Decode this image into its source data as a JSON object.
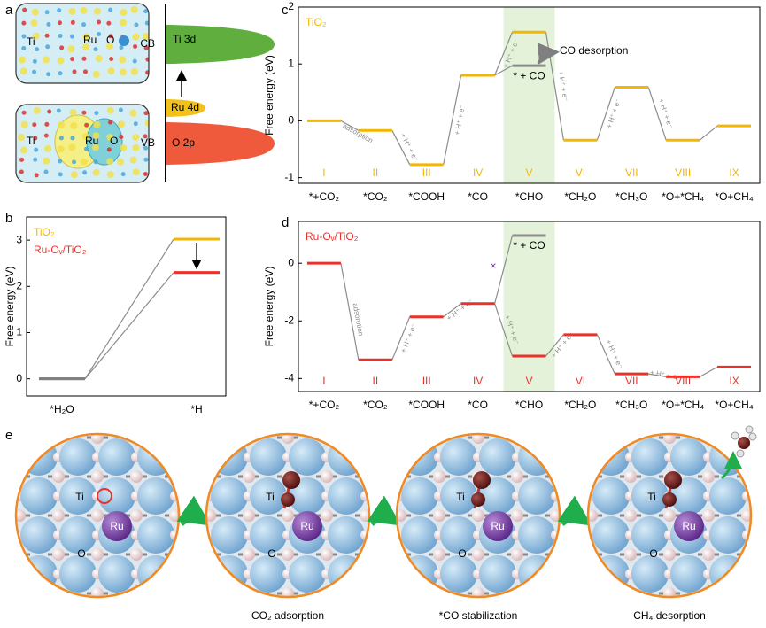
{
  "panel_labels": [
    "a",
    "b",
    "c",
    "d",
    "e"
  ],
  "panel_a": {
    "band_labels": [
      "CB",
      "VB"
    ],
    "levels": [
      "Ti 3d",
      "Ru 4d",
      "O 2p"
    ],
    "atoms": [
      "Ti",
      "Ru",
      "O",
      "Ti",
      "Ru",
      "O"
    ]
  },
  "chart_data": [
    {
      "type": "energy",
      "ylabel": "Free energy (eV)",
      "categories": [
        "*H₂O",
        "*H"
      ],
      "ylim": [
        -0.37,
        3.5
      ],
      "yticks": [
        0,
        1,
        2,
        3
      ],
      "series": [
        {
          "name": "TiO₂",
          "color": "#f2b705",
          "point_colors": [
            "#7f7f7f",
            "#f2b705"
          ],
          "values": [
            0,
            3.02
          ]
        },
        {
          "name": "Ru-Oᵥ/TiO₂",
          "color": "#e8322b",
          "point_colors": [
            "#7f7f7f",
            "#e8322b"
          ],
          "values": [
            0,
            2.3
          ]
        }
      ]
    },
    {
      "type": "energy",
      "ylabel": "Free energy (eV)",
      "categories": [
        "*+CO₂",
        "*CO₂",
        "*COOH",
        "*CO",
        "*CHO",
        "*CH₂O",
        "*CH₃O",
        "*O+*CH₄",
        "*O+CH₄"
      ],
      "stages": [
        "I",
        "II",
        "III",
        "IV",
        "V",
        "VI",
        "VII",
        "VIII",
        "IX"
      ],
      "ylim": [
        -1.1,
        2
      ],
      "yticks": [
        -1,
        0,
        1,
        2
      ],
      "highlight_category": "*CHO",
      "highlight_color": "#e3f2d9",
      "series": [
        {
          "name": "TiO₂",
          "color": "#f2b705",
          "values": [
            0,
            -0.17,
            -0.77,
            0.8,
            1.56,
            -0.34,
            0.59,
            -0.34,
            -0.09
          ]
        },
        {
          "name": "* + CO",
          "color": "#8c8c8c",
          "values": [
            null,
            null,
            null,
            null,
            0.97,
            null,
            null,
            null,
            null
          ]
        }
      ],
      "step_labels": [
        "adsorption",
        "+ H⁺ + e⁻",
        "+ H⁺ + e⁻",
        "+ H⁺ + e⁻",
        "+ H⁺ + e⁻",
        "+ H⁺ + e⁻",
        "+ H⁺ + e⁻",
        null
      ],
      "annotations": [
        "CO desorption"
      ]
    },
    {
      "type": "energy",
      "ylabel": "Free energy (eV)",
      "categories": [
        "*+CO₂",
        "*CO₂",
        "*COOH",
        "*CO",
        "*CHO",
        "*CH₂O",
        "*CH₃O",
        "*O+*CH₄",
        "*O+CH₄"
      ],
      "stages": [
        "I",
        "II",
        "III",
        "IV",
        "V",
        "VI",
        "VII",
        "VIII",
        "IX"
      ],
      "ylim": [
        -4.45,
        1.45
      ],
      "yticks": [
        -4,
        -2,
        0
      ],
      "highlight_category": "*CHO",
      "highlight_color": "#e3f2d9",
      "series": [
        {
          "name": "Ru-Oᵥ/TiO₂",
          "color": "#e8322b",
          "values": [
            0,
            -3.35,
            -1.86,
            -1.4,
            -3.22,
            -2.48,
            -3.84,
            -3.94,
            -3.6
          ]
        },
        {
          "name": "* + CO",
          "color": "#8c8c8c",
          "values": [
            null,
            null,
            null,
            null,
            0.96,
            null,
            null,
            null,
            null
          ]
        }
      ],
      "step_labels": [
        "adsorption",
        "+ H⁺ + e⁻",
        "+ H⁺ + e⁻",
        "+ H⁺ + e⁻",
        "+ H⁺ + e⁻",
        "+ H⁺ + e⁻",
        "+ H⁺ + e⁻",
        null
      ],
      "annotations": [
        "×"
      ]
    }
  ],
  "panel_e": {
    "captions": [
      "CO₂ adsorption",
      "*CO stabilization",
      "CH₄ desorption"
    ],
    "images": [
      {
        "atoms": [
          "Ti",
          "Ru",
          "O"
        ]
      },
      {
        "atoms": [
          "Ti",
          "Ru",
          "O"
        ]
      },
      {
        "atoms": [
          "Ti",
          "Ru",
          "O"
        ]
      },
      {
        "atoms": [
          "Ti",
          "Ru",
          "O"
        ]
      }
    ]
  }
}
